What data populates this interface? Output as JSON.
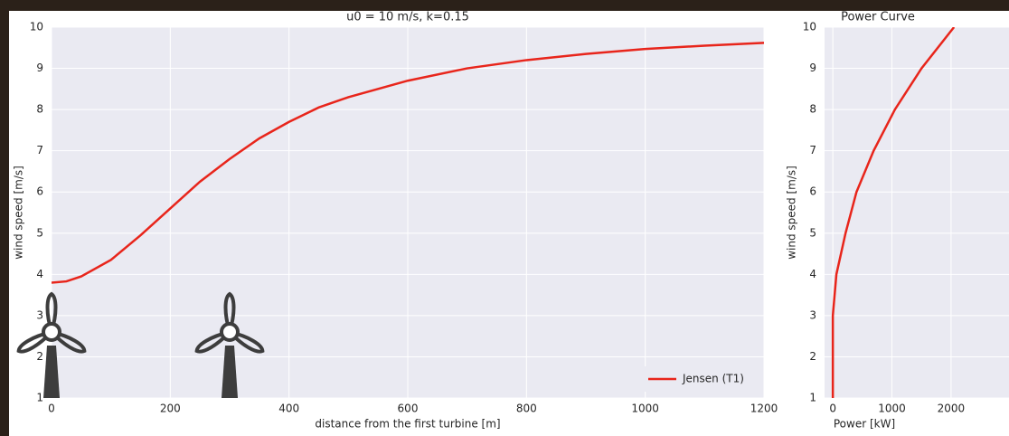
{
  "chart_data": [
    {
      "type": "line",
      "title": "u0 = 10 m/s,  k=0.15",
      "x_label": "distance from the first turbine [m]",
      "y_label": "wind speed [m/s]",
      "xlim": [
        0,
        1200
      ],
      "ylim": [
        1,
        10
      ],
      "xticks": [
        0,
        200,
        400,
        600,
        800,
        1000,
        1200
      ],
      "yticks": [
        1,
        2,
        3,
        4,
        5,
        6,
        7,
        8,
        9,
        10
      ],
      "grid": true,
      "legend": "lower right",
      "series": [
        {
          "name": "Jensen (T1)",
          "color": "#e8251b",
          "x": [
            0,
            25,
            50,
            100,
            150,
            200,
            250,
            300,
            350,
            400,
            450,
            500,
            600,
            700,
            800,
            900,
            1000,
            1100,
            1200
          ],
          "values": [
            3.8,
            3.83,
            3.95,
            4.35,
            4.95,
            5.6,
            6.25,
            6.8,
            7.3,
            7.7,
            8.05,
            8.3,
            8.7,
            9.0,
            9.2,
            9.35,
            9.47,
            9.55,
            9.62
          ]
        }
      ]
    },
    {
      "type": "line",
      "title": "Power Curve",
      "x_label": "Power [kW]",
      "y_label": "wind speed [m/s]",
      "xlim": [
        -140,
        2980
      ],
      "ylim": [
        1,
        10
      ],
      "xticks": [
        0,
        1000,
        2000
      ],
      "yticks": [
        1,
        2,
        3,
        4,
        5,
        6,
        7,
        8,
        9,
        10
      ],
      "grid": true,
      "series": [
        {
          "color": "#e8251b",
          "x": [
            0,
            0,
            0,
            60,
            215,
            400,
            690,
            1050,
            1500,
            2050
          ],
          "values": [
            1,
            2,
            3,
            4,
            5,
            6,
            7,
            8,
            9,
            10
          ]
        }
      ]
    }
  ]
}
